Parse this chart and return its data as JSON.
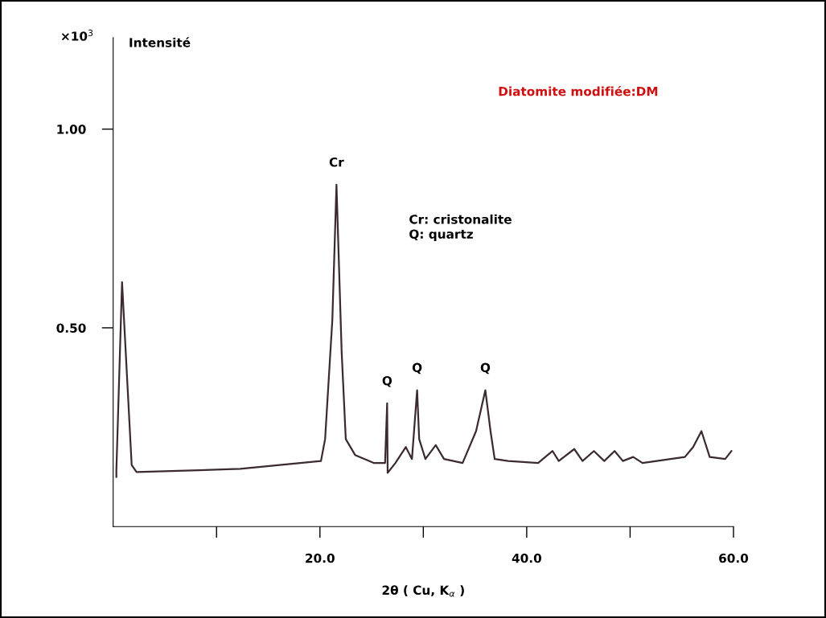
{
  "chart_data": {
    "type": "line",
    "title": "Diatomite modifiée:DM",
    "ylabel": "Intensité",
    "xlabel": "2θ ( Cu, K$_{α}$ )",
    "x": [
      0.31,
      0.31,
      0.86,
      1.79,
      2.26,
      12.3,
      20.1,
      20.5,
      21.2,
      21.6,
      22.1,
      22.5,
      23.4,
      25.2,
      26.3,
      26.5,
      26.55,
      27.3,
      28.3,
      28.9,
      29.4,
      29.6,
      30.2,
      31.2,
      32.0,
      33.8,
      35.1,
      36.0,
      36.5,
      36.9,
      38.2,
      41.1,
      42.5,
      43.1,
      44.6,
      45.4,
      46.5,
      47.5,
      48.5,
      49.3,
      50.3,
      51.2,
      55.3,
      56.1,
      56.9,
      57.7,
      59.2,
      59.8
    ],
    "series": [
      {
        "color": "#3b2b30",
        "values": [
          0.125,
          0.14,
          0.615,
          0.155,
          0.137,
          0.145,
          0.165,
          0.22,
          0.52,
          0.86,
          0.44,
          0.22,
          0.18,
          0.16,
          0.16,
          0.31,
          0.135,
          0.16,
          0.2,
          0.17,
          0.343,
          0.22,
          0.17,
          0.205,
          0.17,
          0.16,
          0.24,
          0.343,
          0.24,
          0.17,
          0.165,
          0.16,
          0.19,
          0.165,
          0.195,
          0.165,
          0.19,
          0.165,
          0.19,
          0.165,
          0.175,
          0.16,
          0.175,
          0.2,
          0.24,
          0.175,
          0.17,
          0.19
        ]
      }
    ],
    "xlim": [
      0,
      60
    ],
    "ylim": [
      0,
      1.23
    ],
    "xticks": [
      {
        "value": 10,
        "label": null
      },
      {
        "value": 20,
        "label": "20.0"
      },
      {
        "value": 30,
        "label": null
      },
      {
        "value": 40,
        "label": "40.0"
      },
      {
        "value": 50,
        "label": null
      },
      {
        "value": 60,
        "label": "60.0"
      }
    ],
    "yticks": [
      {
        "value": 0.5,
        "label": "0.50"
      },
      {
        "value": 1,
        "label": "1.00"
      }
    ],
    "grid": false,
    "legend": false,
    "marker": "none",
    "line_style": "solid",
    "annotations": [
      {
        "text": "Cr",
        "x": 21.6,
        "y": 0.86
      },
      {
        "text": "Q",
        "x": 26.5,
        "y": 0.31
      },
      {
        "text": "Q",
        "x": 29.4,
        "y": 0.343
      },
      {
        "text": "Q",
        "x": 36.0,
        "y": 0.343
      },
      "Cr: cristonalite\nQ: quartz",
      "×10$^{3}$"
    ]
  }
}
